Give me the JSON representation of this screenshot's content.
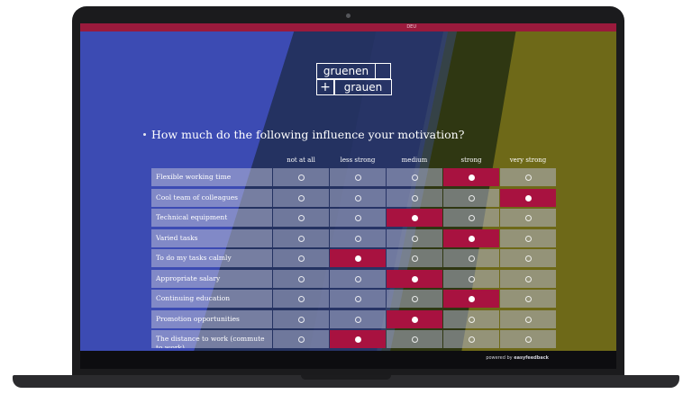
{
  "branding": {
    "logo_line1": "gruenen",
    "logo_plus": "+",
    "logo_line2": "grauen",
    "language": "DEU"
  },
  "survey": {
    "question": "How much do the following influence your motivation?",
    "columns": [
      "not at all",
      "less strong",
      "medium",
      "strong",
      "very strong"
    ],
    "rows": [
      {
        "label": "Flexible working time",
        "selected_index": 3
      },
      {
        "label": "Cool team of colleagues",
        "selected_index": 4
      },
      {
        "label": "Technical equipment",
        "selected_index": 2
      },
      {
        "label": "Varied tasks",
        "selected_index": 3
      },
      {
        "label": "To do my tasks calmly",
        "selected_index": 1
      },
      {
        "label": "Appropriate salary",
        "selected_index": 2
      },
      {
        "label": "Continuing education",
        "selected_index": 3
      },
      {
        "label": "Promotion opportunities",
        "selected_index": 2
      },
      {
        "label": "The distance to work (commute to work)",
        "selected_index": 1
      }
    ]
  },
  "footer": {
    "powered_prefix": "powered by ",
    "powered_brand": "easyfeedback"
  },
  "colors": {
    "background_blue": "#3c4bb3",
    "navy_band": "#243261",
    "olive_band": "#6e6918",
    "dark_green_band": "#2f3712",
    "accent_crimson": "#a81240"
  }
}
